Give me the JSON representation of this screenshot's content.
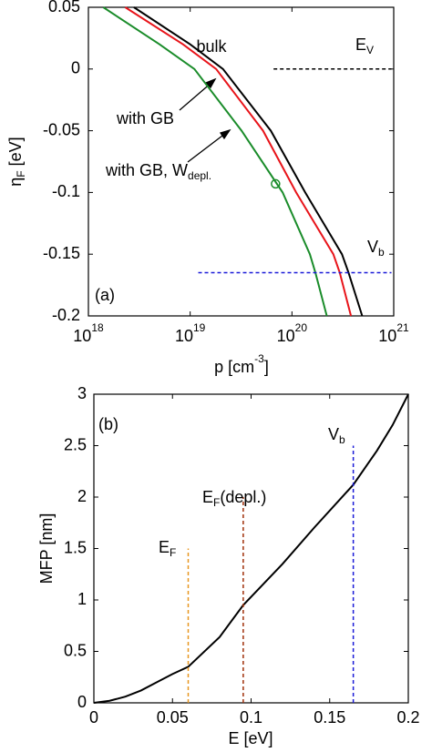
{
  "chart_data": [
    {
      "type": "line",
      "xscale": "log",
      "xlim": [
        1e+18,
        1e+21
      ],
      "ylim": [
        -0.2,
        0.05
      ],
      "xticks": [
        {
          "value": 1e+18,
          "label": "10",
          "exponent": "18"
        },
        {
          "value": 1e+19,
          "label": "10",
          "exponent": "19"
        },
        {
          "value": 1e+20,
          "label": "10",
          "exponent": "20"
        },
        {
          "value": 1e+21,
          "label": "10",
          "exponent": "21"
        }
      ],
      "yticks": [
        0.05,
        0,
        -0.05,
        -0.1,
        -0.15,
        -0.2
      ],
      "xlabel": {
        "text": "p [cm",
        "sup": "-3",
        "rest": "]"
      },
      "ylabel": {
        "text": "η",
        "sub": "F",
        "rest": " [eV]"
      },
      "series": [
        {
          "color": "#000000",
          "x": [
            2.8e+18,
            1e+19,
            2.1e+19,
            6.2e+19,
            1.35e+20,
            3.1e+20,
            3.6e+20,
            4.9e+20
          ],
          "values": [
            0.05,
            0.02,
            0,
            -0.05,
            -0.1,
            -0.15,
            -0.165,
            -0.2
          ]
        },
        {
          "color": "#e8141a",
          "x": [
            2.3e+18,
            8.5e+18,
            1.8e+19,
            5.2e+19,
            1.1e+20,
            2.55e+20,
            2.95e+20,
            3.8e+20
          ],
          "values": [
            0.05,
            0.02,
            0,
            -0.05,
            -0.1,
            -0.15,
            -0.165,
            -0.2
          ]
        },
        {
          "color": "#1a8c2a",
          "x": [
            1.4e+18,
            5e+18,
            1.1e+19,
            3.2e+19,
            8.1e+19,
            1.5e+20,
            1.7e+20,
            2.2e+20
          ],
          "values": [
            0.05,
            0.02,
            0,
            -0.05,
            -0.1,
            -0.15,
            -0.165,
            -0.2
          ]
        },
        {
          "color": "#000000",
          "style": "dashed",
          "x": [
            6.6e+19,
            9.5e+20
          ],
          "values": [
            0,
            0
          ]
        },
        {
          "color": "#1a1ad8",
          "style": "dashed",
          "x": [
            1.2e+19,
            9.5e+20
          ],
          "values": [
            -0.165,
            -0.165
          ]
        }
      ],
      "markers": [
        {
          "color": "#1a8c2a",
          "x": 6.9e+19,
          "value": -0.093
        }
      ],
      "annotations": [
        "bulk",
        {
          "text": "E",
          "sub": "V"
        },
        "with GB",
        {
          "text": "with GB, W",
          "sub": "depl."
        },
        {
          "text": "V",
          "sub": "b"
        },
        "(a)"
      ]
    },
    {
      "type": "line",
      "xscale": "linear",
      "xlim": [
        0,
        0.2
      ],
      "ylim": [
        0,
        3
      ],
      "xticks": [
        0,
        0.05,
        0.1,
        0.15,
        0.2
      ],
      "yticks": [
        0,
        0.5,
        1,
        1.5,
        2,
        2.5,
        3
      ],
      "xlabel": "E [eV]",
      "ylabel": "MFP [nm]",
      "series": [
        {
          "color": "#000000",
          "x": [
            0,
            0.01,
            0.02,
            0.03,
            0.04,
            0.05,
            0.06,
            0.08,
            0.095,
            0.12,
            0.14,
            0.165,
            0.18,
            0.19,
            0.2
          ],
          "values": [
            0,
            0.02,
            0.06,
            0.12,
            0.2,
            0.28,
            0.35,
            0.64,
            0.95,
            1.35,
            1.7,
            2.12,
            2.45,
            2.7,
            3
          ]
        },
        {
          "color": "#e8961e",
          "style": "dashed",
          "x": [
            0.06,
            0.06
          ],
          "values": [
            0,
            1.5
          ]
        },
        {
          "color": "#a0300a",
          "style": "dashed",
          "x": [
            0.095,
            0.095
          ],
          "values": [
            0,
            2
          ]
        },
        {
          "color": "#1a1ad8",
          "style": "dashed",
          "x": [
            0.165,
            0.165
          ],
          "values": [
            0,
            2.5
          ]
        }
      ],
      "annotations": [
        "(b)",
        {
          "text": "V",
          "sub": "b"
        },
        {
          "text": "E",
          "sub": "F",
          "rest": "(depl.)"
        },
        {
          "text": "E",
          "sub": "F"
        }
      ]
    }
  ]
}
